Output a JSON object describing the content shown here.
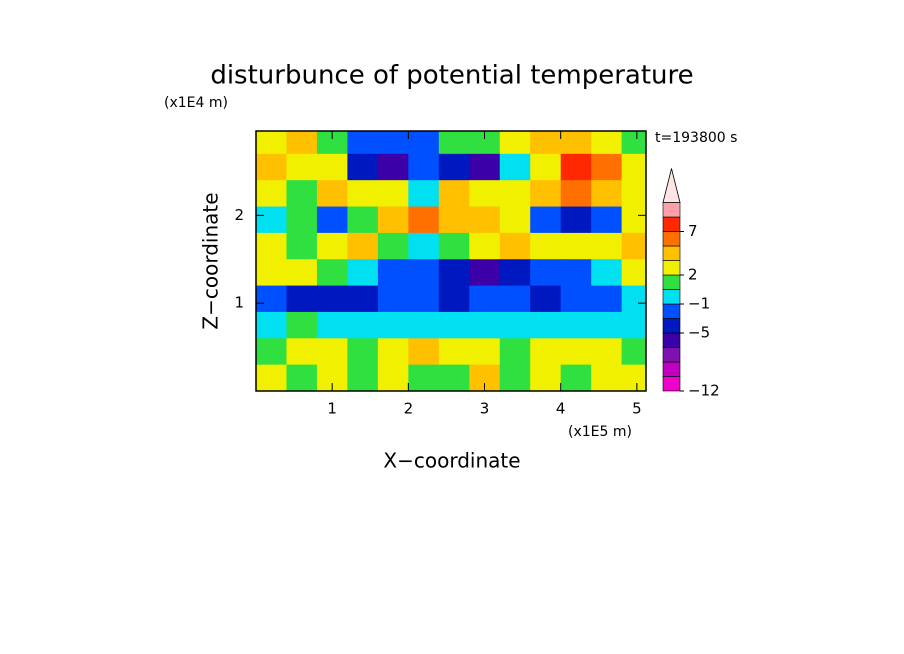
{
  "chart_data": {
    "type": "contour",
    "title": "disturbunce of potential temperature",
    "y_unit": "(x1E4 m)",
    "x_unit": "(x1E5 m)",
    "annotation": "t=193800 s",
    "xlabel": "X−coordinate",
    "ylabel": "Z−coordinate",
    "xlim": [
      0,
      5.12
    ],
    "ylim": [
      0,
      2.96
    ],
    "xticks": [
      1,
      2,
      3,
      4,
      5
    ],
    "yticks": [
      1,
      2
    ],
    "x": [
      0.2,
      0.6,
      1.0,
      1.4,
      1.8,
      2.2,
      2.6,
      3.0,
      3.4,
      3.8,
      4.2,
      4.6,
      5.0
    ],
    "y": [
      2.85,
      2.55,
      2.25,
      1.95,
      1.65,
      1.35,
      1.05,
      0.75,
      0.45,
      0.15
    ],
    "z": [
      [
        2,
        3,
        1,
        -3,
        -3,
        -2,
        1,
        0,
        2,
        3,
        3,
        2,
        1
      ],
      [
        3,
        2,
        2,
        -5,
        -6,
        -2,
        -4,
        -6,
        -1,
        2,
        7,
        6,
        2
      ],
      [
        2,
        0,
        3,
        2,
        2,
        -1,
        3,
        2,
        2,
        3,
        5,
        3,
        2
      ],
      [
        -1,
        0,
        -3,
        0,
        3,
        5,
        4,
        3,
        2,
        -2,
        -5,
        -3,
        2
      ],
      [
        2,
        1,
        2,
        3,
        1,
        -1,
        1,
        2,
        3,
        2,
        2,
        2,
        3
      ],
      [
        2,
        2,
        1,
        -1,
        -3,
        -3,
        -5,
        -6,
        -5,
        -3,
        -2,
        -1,
        2
      ],
      [
        -3,
        -5,
        -5,
        -4,
        -3,
        -3,
        -5,
        -3,
        -3,
        -4,
        -3,
        -3,
        -1
      ],
      [
        -1,
        0,
        -1,
        -1,
        -1,
        -1,
        -1,
        -1,
        -1,
        -1,
        -1,
        -1,
        -1
      ],
      [
        0,
        2,
        2,
        0,
        2,
        3,
        2,
        2,
        0,
        2,
        2,
        2,
        0
      ],
      [
        2,
        0,
        2,
        0,
        2,
        0,
        0,
        3,
        0,
        2,
        0,
        2,
        2
      ]
    ],
    "levels": [
      -12,
      -10,
      -8,
      -6,
      -5,
      -3,
      -1,
      0,
      2,
      3,
      5,
      7,
      9,
      12
    ],
    "colors": [
      "#f000c8",
      "#c000c0",
      "#8010b0",
      "#3c00a8",
      "#0018c0",
      "#0050ff",
      "#00e0f0",
      "#30e040",
      "#f0f000",
      "#ffc000",
      "#ff7000",
      "#ff2800",
      "#ffa0a8"
    ],
    "over_color": "#ffe4e4",
    "cbar_ticks": [
      {
        "value": -12,
        "label": "−12"
      },
      {
        "value": -5,
        "label": "−5"
      },
      {
        "value": -1,
        "label": "−1"
      },
      2,
      7
    ]
  }
}
